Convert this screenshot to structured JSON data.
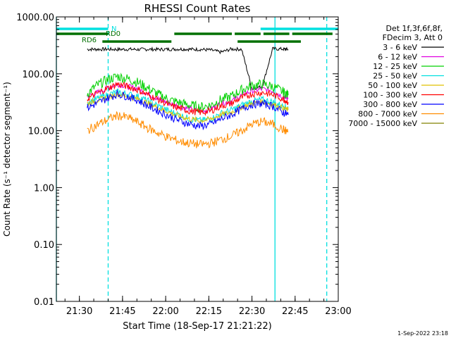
{
  "chart_data": {
    "type": "line",
    "title": "RHESSI Count Rates",
    "xlabel": "Start Time (18-Sep-17 21:21:22)",
    "ylabel": "Count Rate (s⁻¹ detector segment⁻¹)",
    "yscale": "log",
    "ylim": [
      0.01,
      1000
    ],
    "xlim_minutes": [
      21.37,
      23.0
    ],
    "xlim": [
      "21:22",
      "23:00"
    ],
    "x_ticks": [
      "21:30",
      "21:45",
      "22:00",
      "22:15",
      "22:30",
      "22:45",
      "23:00"
    ],
    "y_ticks": [
      "0.01",
      "0.10",
      "1.00",
      "10.00",
      "100.00",
      "1000.00"
    ],
    "grid": false,
    "legend_position": "top-right",
    "legend_header": [
      "Det 1f,3f,6f,8f,",
      "FDecim 3, Att 0"
    ],
    "timestamp": "1-Sep-2022 23:18",
    "x_hours": [
      21.545,
      21.6,
      21.66,
      21.72,
      21.78,
      21.84,
      21.9,
      21.96,
      22.02,
      22.08,
      22.14,
      22.2,
      22.26,
      22.32,
      22.38,
      22.44,
      22.5,
      22.56,
      22.62,
      22.68,
      22.71
    ],
    "series": [
      {
        "name": "3 - 6 keV",
        "color": "#000000",
        "values": [
          270,
          270,
          270,
          268,
          270,
          268,
          270,
          268,
          270,
          272,
          270,
          268,
          262,
          240,
          272,
          270,
          55,
          60,
          275,
          272,
          268
        ]
      },
      {
        "name": "6 - 12 keV",
        "color": "#e000e0",
        "values": [
          40,
          46,
          56,
          66,
          60,
          54,
          44,
          36,
          30,
          27,
          24,
          22,
          24,
          30,
          33,
          42,
          50,
          54,
          50,
          40,
          36
        ]
      },
      {
        "name": "12 - 25 keV",
        "color": "#00d000",
        "values": [
          45,
          62,
          78,
          90,
          82,
          70,
          55,
          43,
          35,
          31,
          28,
          26,
          28,
          35,
          40,
          52,
          62,
          66,
          60,
          48,
          42
        ]
      },
      {
        "name": "25 - 50 keV",
        "color": "#00e0e0",
        "values": [
          32,
          36,
          42,
          48,
          44,
          40,
          33,
          27,
          22,
          19,
          16,
          15,
          16,
          20,
          23,
          28,
          33,
          35,
          32,
          27,
          25
        ]
      },
      {
        "name": "50 - 100 keV",
        "color": "#e0c000",
        "values": [
          30,
          34,
          38,
          44,
          40,
          36,
          30,
          25,
          21,
          18,
          16,
          15,
          16,
          19,
          21,
          26,
          30,
          32,
          29,
          25,
          23
        ]
      },
      {
        "name": "100 - 300 keV",
        "color": "#ff0000",
        "values": [
          36,
          45,
          55,
          66,
          60,
          52,
          42,
          35,
          28,
          25,
          22,
          21,
          22,
          27,
          30,
          38,
          44,
          47,
          43,
          36,
          32
        ]
      },
      {
        "name": "300 - 800 keV",
        "color": "#0000ff",
        "values": [
          25,
          30,
          37,
          44,
          40,
          34,
          27,
          22,
          18,
          15,
          13,
          12,
          13,
          16,
          19,
          24,
          29,
          30,
          27,
          21,
          19
        ]
      },
      {
        "name": "800 - 7000 keV",
        "color": "#ff8c00",
        "values": [
          10,
          12.5,
          15.5,
          18.5,
          17,
          14,
          11,
          9,
          7.5,
          6.5,
          6,
          5.7,
          6,
          7,
          8,
          10,
          13,
          14.5,
          13,
          10.5,
          9.5
        ]
      },
      {
        "name": "7000 - 15000 keV",
        "color": "#808000",
        "values": []
      }
    ],
    "flags": [
      {
        "label": "N",
        "color": "#00e0e0"
      },
      {
        "label": "RD0",
        "color": "#007000"
      },
      {
        "label": "RD6",
        "color": "#007000"
      }
    ],
    "flag_bars": [
      {
        "color": "#00e0e0",
        "spans": [
          [
            "21:22",
            "21:40"
          ],
          [
            "22:33",
            "23:00"
          ]
        ]
      },
      {
        "color": "#007000",
        "spans": [
          [
            "21:22",
            "21:40"
          ],
          [
            "22:03",
            "22:23"
          ],
          [
            "22:24",
            "22:33"
          ],
          [
            "22:34",
            "22:43"
          ],
          [
            "22:44",
            "22:58"
          ]
        ]
      },
      {
        "color": "#007000",
        "spans": [
          [
            "21:38",
            "22:02"
          ],
          [
            "22:25",
            "22:47"
          ]
        ]
      }
    ],
    "vertical_lines": [
      {
        "time": "21:22",
        "color": "#00e0e0",
        "style": "solid"
      },
      {
        "time": "21:40",
        "color": "#00e0e0",
        "style": "dashed"
      },
      {
        "time": "22:38",
        "color": "#00e0e0",
        "style": "solid"
      },
      {
        "time": "22:56",
        "color": "#00e0e0",
        "style": "dashed"
      }
    ]
  }
}
